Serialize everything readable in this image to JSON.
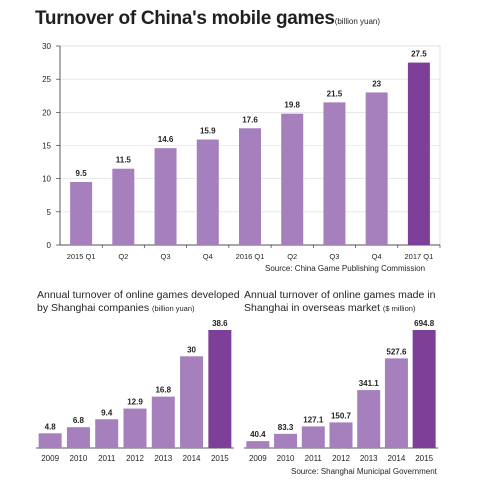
{
  "main": {
    "title": "Turnover of China's mobile games",
    "unit": "(billion yuan)",
    "source": "Source: China Game Publishing Commission"
  },
  "left": {
    "title": "Annual turnover of online games developed by Shanghai companies",
    "unit": "(billion yuan)"
  },
  "right": {
    "title": "Annual turnover of online games made in Shanghai in overseas market",
    "unit": "($ million)",
    "source": "Source: Shanghai Municipal Government"
  },
  "colors": {
    "bar": "#a67fbd",
    "bar_highlight": "#7d3f98",
    "axis": "#231f20"
  },
  "chart_data": [
    {
      "type": "bar",
      "title": "Turnover of China's mobile games",
      "ylabel": "billion yuan",
      "categories": [
        "2015 Q1",
        "Q2",
        "Q3",
        "Q4",
        "2016 Q1",
        "Q2",
        "Q3",
        "Q4",
        "2017 Q1"
      ],
      "values": [
        9.5,
        11.5,
        14.6,
        15.9,
        17.6,
        19.8,
        21.5,
        23,
        27.5
      ],
      "value_labels": [
        "9.5",
        "11.5",
        "14.6",
        "15.9",
        "17.6",
        "19.8",
        "21.5",
        "23",
        "27.5"
      ],
      "yticks": [
        "0",
        "5",
        "10",
        "15",
        "20",
        "25",
        "30"
      ],
      "ylim": [
        0,
        30
      ],
      "grid": true,
      "highlight_last": true
    },
    {
      "type": "bar",
      "title": "Annual turnover of online games developed by Shanghai companies",
      "ylabel": "billion yuan",
      "categories": [
        "2009",
        "2010",
        "2011",
        "2012",
        "2013",
        "2014",
        "2015"
      ],
      "values": [
        4.8,
        6.8,
        9.4,
        12.9,
        16.8,
        30,
        38.6
      ],
      "value_labels": [
        "4.8",
        "6.8",
        "9.4",
        "12.9",
        "16.8",
        "30",
        "38.6"
      ],
      "ylim": [
        0,
        38.6
      ],
      "grid": false,
      "highlight_last": true
    },
    {
      "type": "bar",
      "title": "Annual turnover of online games made in Shanghai in overseas market",
      "ylabel": "$ million",
      "categories": [
        "2009",
        "2010",
        "2011",
        "2012",
        "2013",
        "2014",
        "2015"
      ],
      "values": [
        40.4,
        83.3,
        127.1,
        150.7,
        341.1,
        527.6,
        694.8
      ],
      "value_labels": [
        "40.4",
        "83.3",
        "127.1",
        "150.7",
        "341.1",
        "527.6",
        "694.8"
      ],
      "ylim": [
        0,
        694.8
      ],
      "grid": false,
      "highlight_last": true
    }
  ]
}
